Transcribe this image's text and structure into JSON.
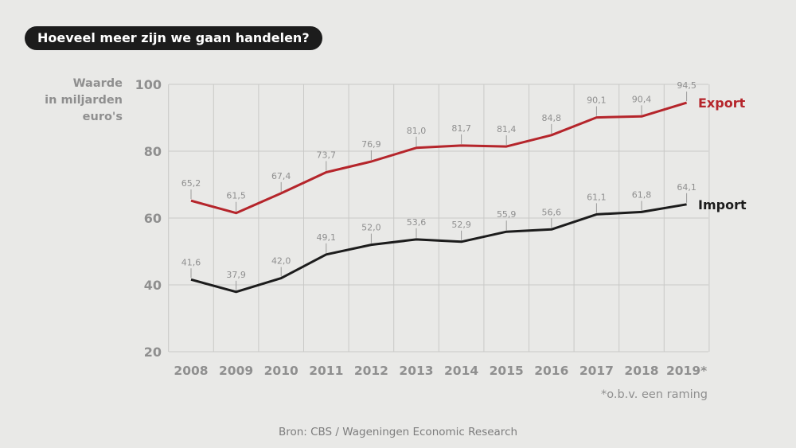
{
  "header": {
    "title": "Hoeveel meer zijn we gaan handelen?"
  },
  "chart_data": {
    "type": "line",
    "ylabel": [
      "Waarde",
      "in miljarden",
      "euro's"
    ],
    "categories": [
      "2008",
      "2009",
      "2010",
      "2011",
      "2012",
      "2013",
      "2014",
      "2015",
      "2016",
      "2017",
      "2018",
      "2019*"
    ],
    "ylim": [
      20,
      100
    ],
    "yticks": [
      "20",
      "40",
      "60",
      "80",
      "100"
    ],
    "grid": true,
    "legend_placement": "right, at line ends",
    "series": [
      {
        "name": "Export",
        "color": "#b5252b",
        "values": [
          65.2,
          61.5,
          67.4,
          73.7,
          76.9,
          81.0,
          81.7,
          81.4,
          84.8,
          90.1,
          90.4,
          94.5
        ],
        "labels": [
          "65,2",
          "61,5",
          "67,4",
          "73,7",
          "76,9",
          "81,0",
          "81,7",
          "81,4",
          "84,8",
          "90,1",
          "90,4",
          "94,5"
        ]
      },
      {
        "name": "Import",
        "color": "#1c1c1c",
        "values": [
          41.6,
          37.9,
          42.0,
          49.1,
          52.0,
          53.6,
          52.9,
          55.9,
          56.6,
          61.1,
          61.8,
          64.1
        ],
        "labels": [
          "41,6",
          "37,9",
          "42,0",
          "49,1",
          "52,0",
          "53,6",
          "52,9",
          "55,9",
          "56,6",
          "61,1",
          "61,8",
          "64,1"
        ]
      }
    ],
    "note": "*o.b.v. een raming",
    "source": "Bron: CBS / Wageningen Economic Research"
  }
}
